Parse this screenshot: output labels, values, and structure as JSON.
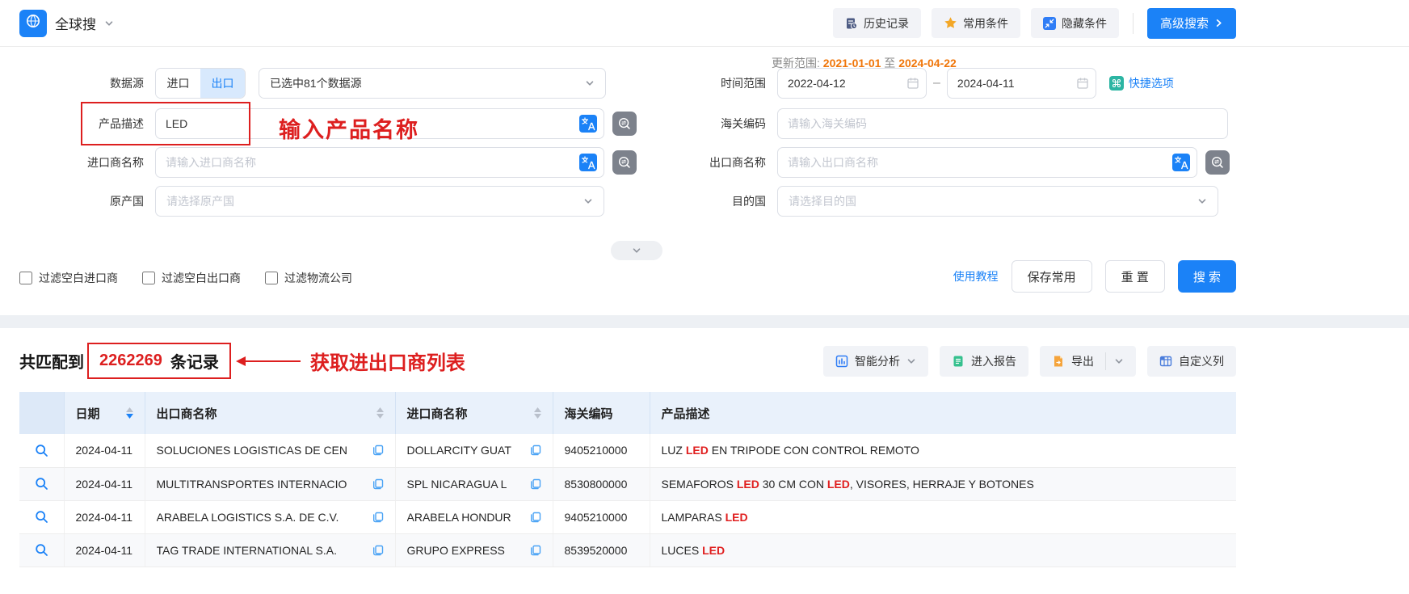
{
  "colors": {
    "primary_blue": "#1b82f7",
    "annotation_red": "#dd1f1f",
    "highlight_red": "#e01f1f",
    "update_orange": "#f0760a",
    "star_gold": "#f3a727",
    "teal_icon": "#2cb5a3",
    "report_green": "#35c08e",
    "export_orange": "#f5a43c",
    "table_header_bg": "#e9f1fb"
  },
  "topbar": {
    "app_title": "全球搜",
    "history_label": "历史记录",
    "favorites_label": "常用条件",
    "hide_conditions_label": "隐藏条件",
    "advanced_search_label": "高级搜索"
  },
  "form": {
    "data_source": {
      "label": "数据源",
      "options": [
        {
          "label": "进口",
          "active": false
        },
        {
          "label": "出口",
          "active": true
        }
      ],
      "selected_sources": "已选中81个数据源"
    },
    "update_range": {
      "prefix": "更新范围:",
      "start": "2021-01-01",
      "to": "至",
      "end": "2024-04-22"
    },
    "time_range": {
      "label": "时间范围",
      "start": "2022-04-12",
      "end": "2024-04-11",
      "quick_options": "快捷选项"
    },
    "product_desc": {
      "label": "产品描述",
      "value": "LED",
      "annotation": "输入产品名称"
    },
    "hs_code": {
      "label": "海关编码",
      "placeholder": "请输入海关编码"
    },
    "importer": {
      "label": "进口商名称",
      "placeholder": "请输入进口商名称"
    },
    "exporter": {
      "label": "出口商名称",
      "placeholder": "请输入出口商名称"
    },
    "origin_country": {
      "label": "原产国",
      "placeholder": "请选择原产国"
    },
    "dest_country": {
      "label": "目的国",
      "placeholder": "请选择目的国"
    },
    "filters": [
      {
        "label": "过滤空白进口商",
        "checked": false
      },
      {
        "label": "过滤空白出口商",
        "checked": false
      },
      {
        "label": "过滤物流公司",
        "checked": false
      }
    ],
    "tutorial_link": "使用教程",
    "save_label": "保存常用",
    "reset_label": "重 置",
    "search_label": "搜 索"
  },
  "results": {
    "prefix": "共匹配到",
    "count": "2262269",
    "suffix": "条记录",
    "annotation": "获取进出口商列表",
    "buttons": {
      "analysis": "智能分析",
      "report": "进入报告",
      "export": "导出",
      "custom_columns": "自定义列"
    }
  },
  "table": {
    "highlight_term": "LED",
    "headers": [
      {
        "key": "date",
        "label": "日期",
        "sortable": true,
        "active_sort": "desc"
      },
      {
        "key": "exporter",
        "label": "出口商名称",
        "sortable": true,
        "active_sort": null
      },
      {
        "key": "importer",
        "label": "进口商名称",
        "sortable": true,
        "active_sort": null
      },
      {
        "key": "hs-code",
        "label": "海关编码",
        "sortable": false,
        "active_sort": null
      },
      {
        "key": "product-desc",
        "label": "产品描述",
        "sortable": false,
        "active_sort": null
      }
    ],
    "rows": [
      {
        "date": "2024-04-11",
        "exporter": "SOLUCIONES LOGISTICAS DE CEN",
        "importer": "DOLLARCITY GUAT",
        "hs_code": "9405210000",
        "desc": "LUZ LED EN TRIPODE CON CONTROL REMOTO"
      },
      {
        "date": "2024-04-11",
        "exporter": "MULTITRANSPORTES INTERNACIO",
        "importer": "SPL NICARAGUA L",
        "hs_code": "8530800000",
        "desc": "SEMAFOROS LED 30 CM CON LED, VISORES, HERRAJE Y BOTONES"
      },
      {
        "date": "2024-04-11",
        "exporter": "ARABELA LOGISTICS S.A. DE C.V.",
        "importer": "ARABELA HONDUR",
        "hs_code": "9405210000",
        "desc": "LAMPARAS LED"
      },
      {
        "date": "2024-04-11",
        "exporter": "TAG TRADE INTERNATIONAL S.A.",
        "importer": "GRUPO EXPRESS",
        "hs_code": "8539520000",
        "desc": "LUCES LED"
      }
    ]
  }
}
